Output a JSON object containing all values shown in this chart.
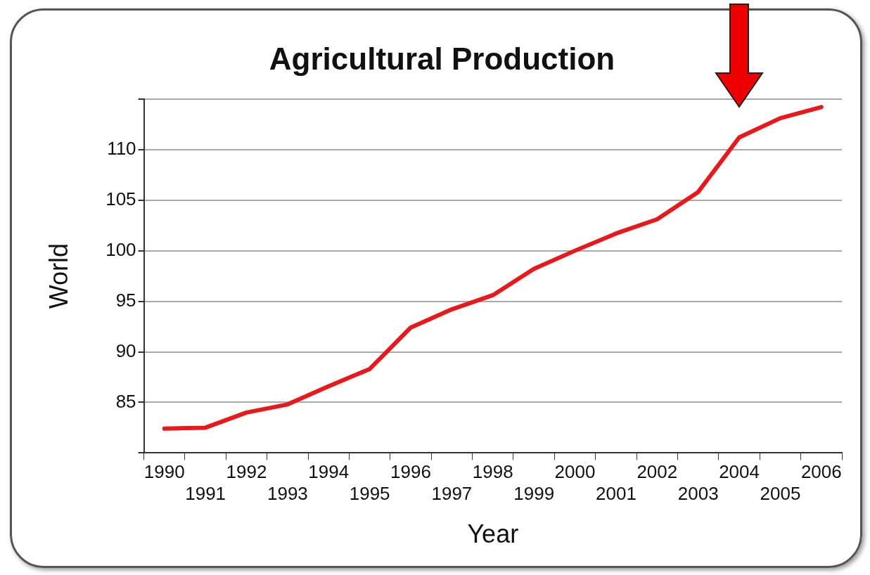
{
  "chart_data": {
    "type": "line",
    "title": "Agricultural Production",
    "xlabel": "Year",
    "ylabel": "World",
    "categories": [
      "1990",
      "1991",
      "1992",
      "1993",
      "1994",
      "1995",
      "1996",
      "1997",
      "1998",
      "1999",
      "2000",
      "2001",
      "2002",
      "2003",
      "2004",
      "2005",
      "2006"
    ],
    "series": [
      {
        "color": "#e8191c",
        "values": [
          82.4,
          82.5,
          84.0,
          84.8,
          86.6,
          88.3,
          92.4,
          94.2,
          95.6,
          98.2,
          100.0,
          101.7,
          103.1,
          105.8,
          111.2,
          113.1,
          114.2
        ]
      }
    ],
    "ylim": [
      80,
      115
    ],
    "yticks": [
      {
        "value": 80,
        "label": null
      },
      85,
      90,
      95,
      100,
      105,
      110,
      {
        "value": 115,
        "label": null
      }
    ],
    "grid": "y",
    "legend": false,
    "marker": "none",
    "line_style": "solid"
  }
}
